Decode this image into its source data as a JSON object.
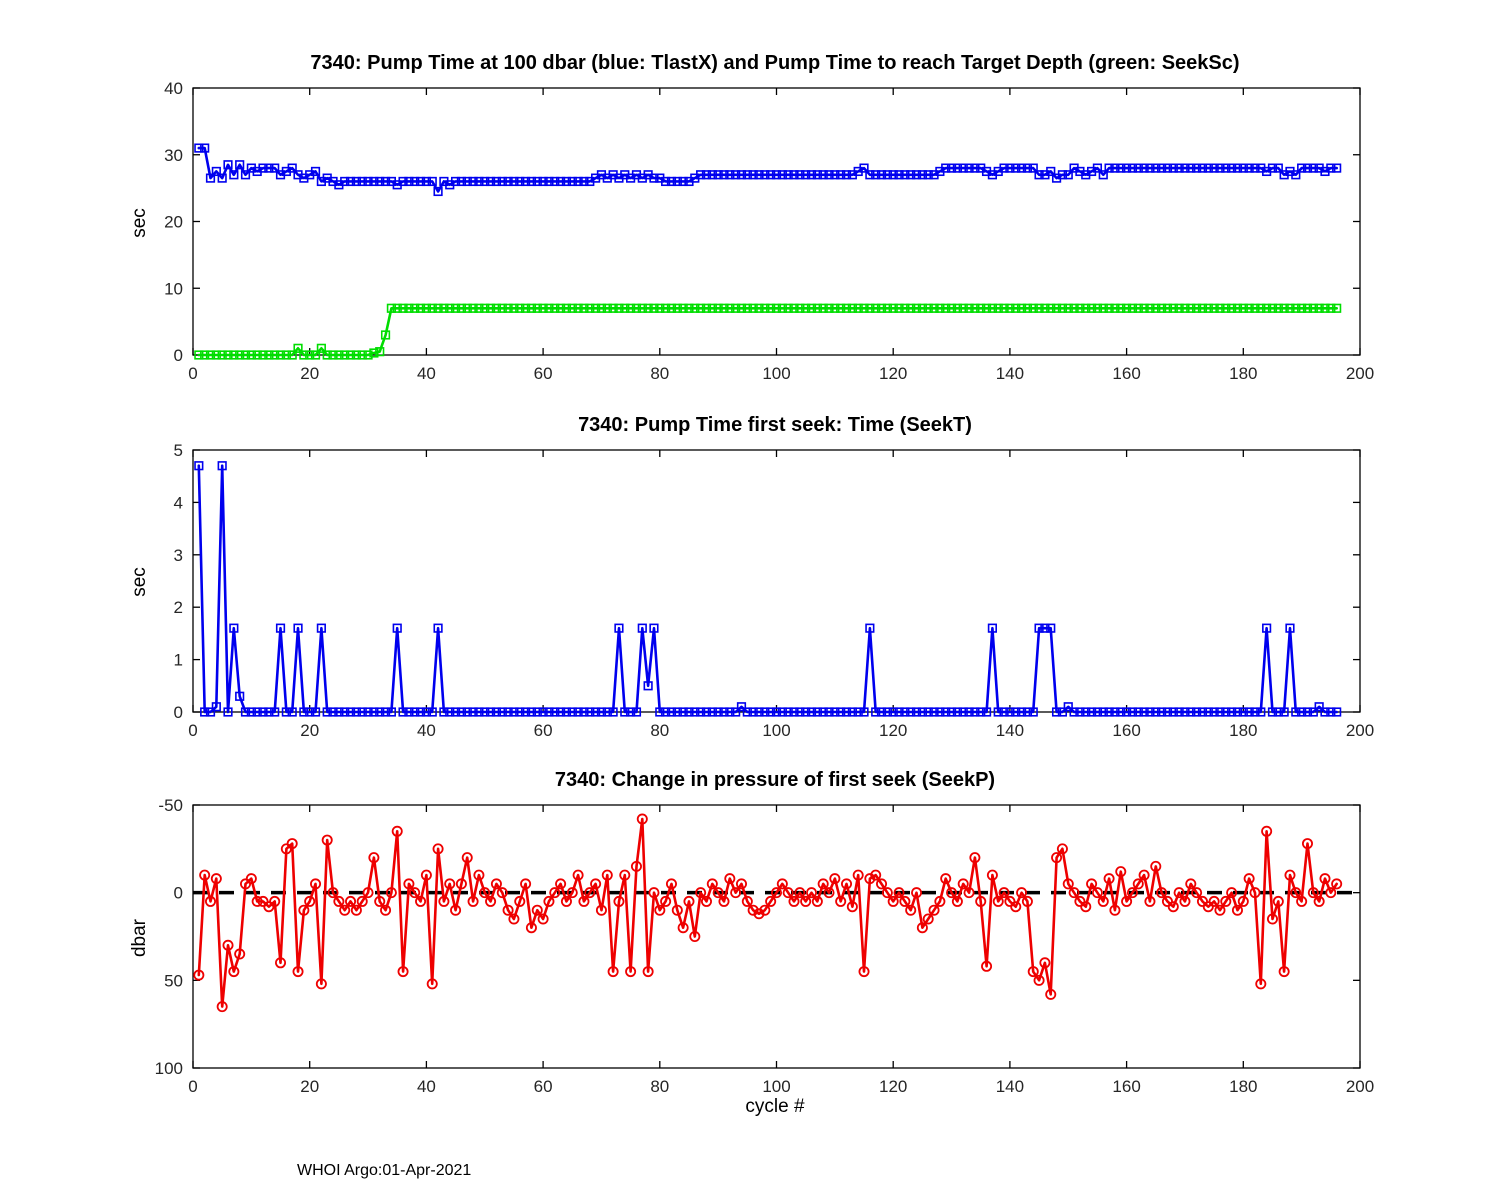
{
  "figure": {
    "footer": "WHOI Argo:01-Apr-2021",
    "background": "#ffffff"
  },
  "chart_data": [
    {
      "id": "pump-time",
      "type": "line",
      "title": "7340:  Pump Time at 100 dbar (blue: TlastX) and Pump Time to reach Target Depth (green: SeekSc)",
      "ylabel": "sec",
      "xlabel": "",
      "xlim": [
        0,
        200
      ],
      "ylim": [
        0,
        40
      ],
      "xticks": [
        0,
        20,
        40,
        60,
        80,
        100,
        120,
        140,
        160,
        180,
        200
      ],
      "yticks": [
        0,
        10,
        20,
        30,
        40
      ],
      "grid": false,
      "x_start": 1,
      "series": [
        {
          "name": "TlastX",
          "color": "#0000ee",
          "marker": "square",
          "values": [
            31,
            31,
            26.5,
            27.5,
            26.5,
            28.5,
            27,
            28.5,
            27,
            28,
            27.5,
            28,
            28,
            28,
            27,
            27.5,
            28,
            27,
            26.5,
            27,
            27.5,
            26,
            26.5,
            26,
            25.5,
            26,
            26,
            26,
            26,
            26,
            26,
            26,
            26,
            26,
            25.5,
            26,
            26,
            26,
            26,
            26,
            26,
            24.5,
            26,
            25.5,
            26,
            26,
            26,
            26,
            26,
            26,
            26,
            26,
            26,
            26,
            26,
            26,
            26,
            26,
            26,
            26,
            26,
            26,
            26,
            26,
            26,
            26,
            26,
            26,
            26.5,
            27,
            26.5,
            27,
            26.5,
            27,
            26.5,
            27,
            26.5,
            27,
            26.5,
            26.5,
            26,
            26,
            26,
            26,
            26,
            26.5,
            27,
            27,
            27,
            27,
            27,
            27,
            27,
            27,
            27,
            27,
            27,
            27,
            27,
            27,
            27,
            27,
            27,
            27,
            27,
            27,
            27,
            27,
            27,
            27,
            27,
            27,
            27,
            27.5,
            28,
            27,
            27,
            27,
            27,
            27,
            27,
            27,
            27,
            27,
            27,
            27,
            27,
            27.5,
            28,
            28,
            28,
            28,
            28,
            28,
            28,
            27.5,
            27,
            27.5,
            28,
            28,
            28,
            28,
            28,
            28,
            27,
            27,
            27.5,
            26.5,
            27,
            27,
            28,
            27.5,
            27,
            27.5,
            28,
            27,
            28,
            28,
            28,
            28,
            28,
            28,
            28,
            28,
            28,
            28,
            28,
            28,
            28,
            28,
            28,
            28,
            28,
            28,
            28,
            28,
            28,
            28,
            28,
            28,
            28,
            28,
            28,
            27.5,
            28,
            28,
            27,
            27.5,
            27,
            28,
            28,
            28,
            28,
            27.5,
            28,
            28
          ]
        },
        {
          "name": "SeekSc",
          "color": "#00dd00",
          "marker": "square",
          "values": [
            0,
            0,
            0,
            0,
            0,
            0,
            0,
            0,
            0,
            0,
            0,
            0,
            0,
            0,
            0,
            0,
            0,
            1,
            0,
            0,
            0,
            1,
            0,
            0,
            0,
            0,
            0,
            0,
            0,
            0,
            0.3,
            0.5,
            3,
            7,
            7,
            7,
            7,
            7,
            7,
            7,
            7,
            7,
            7,
            7,
            7,
            7,
            7,
            7,
            7,
            7,
            7,
            7,
            7,
            7,
            7,
            7,
            7,
            7,
            7,
            7,
            7,
            7,
            7,
            7,
            7,
            7,
            7,
            7,
            7,
            7,
            7,
            7,
            7,
            7,
            7,
            7,
            7,
            7,
            7,
            7,
            7,
            7,
            7,
            7,
            7,
            7,
            7,
            7,
            7,
            7,
            7,
            7,
            7,
            7,
            7,
            7,
            7,
            7,
            7,
            7,
            7,
            7,
            7,
            7,
            7,
            7,
            7,
            7,
            7,
            7,
            7,
            7,
            7,
            7,
            7,
            7,
            7,
            7,
            7,
            7,
            7,
            7,
            7,
            7,
            7,
            7,
            7,
            7,
            7,
            7,
            7,
            7,
            7,
            7,
            7,
            7,
            7,
            7,
            7,
            7,
            7,
            7,
            7,
            7,
            7,
            7,
            7,
            7,
            7,
            7,
            7,
            7,
            7,
            7,
            7,
            7,
            7,
            7,
            7,
            7,
            7,
            7,
            7,
            7,
            7,
            7,
            7,
            7,
            7,
            7,
            7,
            7,
            7,
            7,
            7,
            7,
            7,
            7,
            7,
            7,
            7,
            7,
            7,
            7,
            7,
            7,
            7,
            7,
            7,
            7,
            7,
            7,
            7,
            7,
            7,
            7
          ]
        }
      ]
    },
    {
      "id": "seek-time",
      "type": "line",
      "title": "7340: Pump Time first seek: Time (SeekT)",
      "ylabel": "sec",
      "xlabel": "",
      "xlim": [
        0,
        200
      ],
      "ylim": [
        0,
        5
      ],
      "xticks": [
        0,
        20,
        40,
        60,
        80,
        100,
        120,
        140,
        160,
        180,
        200
      ],
      "yticks": [
        0,
        1,
        2,
        3,
        4,
        5
      ],
      "grid": false,
      "x_start": 1,
      "series": [
        {
          "name": "SeekT",
          "color": "#0000ee",
          "marker": "square",
          "values": [
            4.7,
            0,
            0,
            0.1,
            4.7,
            0,
            1.6,
            0.3,
            0,
            0,
            0,
            0,
            0,
            0,
            1.6,
            0,
            0,
            1.6,
            0,
            0,
            0,
            1.6,
            0,
            0,
            0,
            0,
            0,
            0,
            0,
            0,
            0,
            0,
            0,
            0,
            1.6,
            0,
            0,
            0,
            0,
            0,
            0,
            1.6,
            0,
            0,
            0,
            0,
            0,
            0,
            0,
            0,
            0,
            0,
            0,
            0,
            0,
            0,
            0,
            0,
            0,
            0,
            0,
            0,
            0,
            0,
            0,
            0,
            0,
            0,
            0,
            0,
            0,
            0,
            1.6,
            0,
            0,
            0,
            1.6,
            0.5,
            1.6,
            0,
            0,
            0,
            0,
            0,
            0,
            0,
            0,
            0,
            0,
            0,
            0,
            0,
            0,
            0.1,
            0,
            0,
            0,
            0,
            0,
            0,
            0,
            0,
            0,
            0,
            0,
            0,
            0,
            0,
            0,
            0,
            0,
            0,
            0,
            0,
            0,
            1.6,
            0,
            0,
            0,
            0,
            0,
            0,
            0,
            0,
            0,
            0,
            0,
            0,
            0,
            0,
            0,
            0,
            0,
            0,
            0,
            0,
            1.6,
            0,
            0,
            0,
            0,
            0,
            0,
            0,
            1.6,
            1.6,
            1.6,
            0,
            0,
            0.1,
            0,
            0,
            0,
            0,
            0,
            0,
            0,
            0,
            0,
            0,
            0,
            0,
            0,
            0,
            0,
            0,
            0,
            0,
            0,
            0,
            0,
            0,
            0,
            0,
            0,
            0,
            0,
            0,
            0,
            0,
            0,
            0,
            0,
            1.6,
            0,
            0,
            0,
            1.6,
            0,
            0,
            0,
            0,
            0.1,
            0,
            0,
            0
          ]
        }
      ]
    },
    {
      "id": "seek-pressure",
      "type": "line",
      "title": "7340: Change in pressure of first seek (SeekP)",
      "ylabel": "dbar",
      "xlabel": "cycle #",
      "xlim": [
        0,
        200
      ],
      "ylim": [
        -50,
        100
      ],
      "y_reversed": true,
      "xticks": [
        0,
        20,
        40,
        60,
        80,
        100,
        120,
        140,
        160,
        180,
        200
      ],
      "yticks": [
        -50,
        0,
        50,
        100
      ],
      "grid": false,
      "x_start": 1,
      "refline": {
        "y": 0,
        "color": "#000000",
        "style": "dashed"
      },
      "series": [
        {
          "name": "SeekP",
          "color": "#ee0000",
          "marker": "circle",
          "values": [
            47,
            -10,
            5,
            -8,
            65,
            30,
            45,
            35,
            -5,
            -8,
            5,
            5,
            8,
            5,
            40,
            -25,
            -28,
            45,
            10,
            5,
            -5,
            52,
            -30,
            0,
            5,
            10,
            5,
            10,
            5,
            0,
            -20,
            5,
            10,
            0,
            -35,
            45,
            -5,
            0,
            5,
            -10,
            52,
            -25,
            5,
            -5,
            10,
            -5,
            -20,
            5,
            -10,
            0,
            5,
            -5,
            0,
            10,
            15,
            5,
            -5,
            20,
            10,
            15,
            5,
            0,
            -5,
            5,
            0,
            -10,
            5,
            0,
            -5,
            10,
            -10,
            45,
            5,
            -10,
            45,
            -15,
            -42,
            45,
            0,
            10,
            5,
            -5,
            10,
            20,
            5,
            25,
            0,
            5,
            -5,
            0,
            5,
            -8,
            0,
            -5,
            5,
            10,
            12,
            10,
            5,
            0,
            -5,
            0,
            5,
            0,
            5,
            0,
            5,
            -5,
            0,
            -8,
            5,
            -5,
            8,
            -10,
            45,
            -8,
            -10,
            -5,
            0,
            5,
            0,
            5,
            10,
            0,
            20,
            15,
            10,
            5,
            -8,
            0,
            5,
            -5,
            0,
            -20,
            5,
            42,
            -10,
            5,
            0,
            5,
            8,
            0,
            5,
            45,
            50,
            40,
            58,
            -20,
            -25,
            -5,
            0,
            5,
            8,
            -5,
            0,
            5,
            -8,
            10,
            -12,
            5,
            0,
            -5,
            -10,
            5,
            -15,
            0,
            5,
            8,
            0,
            5,
            -5,
            0,
            5,
            8,
            5,
            10,
            5,
            0,
            10,
            5,
            -8,
            0,
            52,
            -35,
            15,
            5,
            45,
            -10,
            0,
            5,
            -28,
            0,
            5,
            -8,
            0,
            -5
          ]
        }
      ]
    }
  ]
}
